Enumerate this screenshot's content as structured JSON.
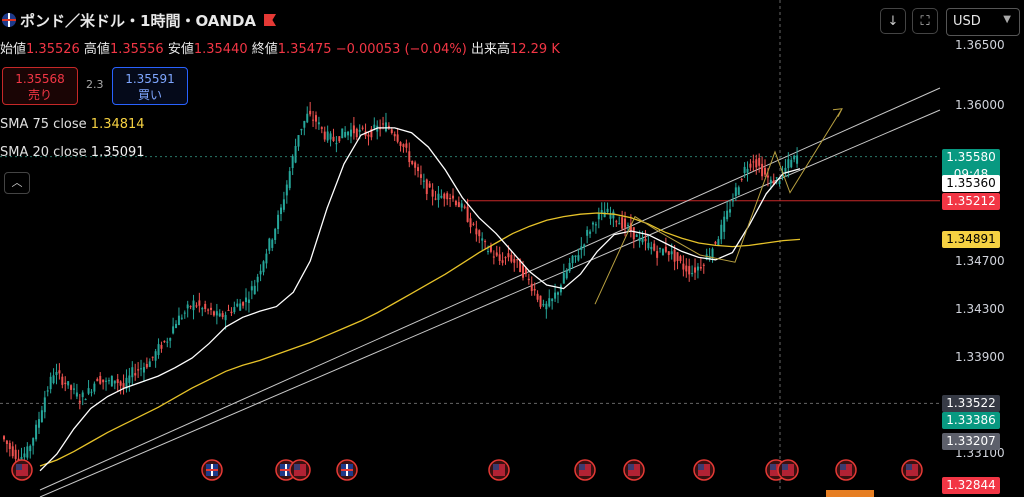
{
  "header": {
    "symbol": "ポンド／米ドル・1時間・OANDA"
  },
  "ohlc": {
    "open_label": "始値",
    "open": "1.35526",
    "high_label": "高値",
    "high": "1.35556",
    "low_label": "安値",
    "low": "1.35440",
    "close_label": "終値",
    "close": "1.35475",
    "change": "−0.00053 (−0.04%)",
    "volume_label": "出来高",
    "volume": "12.29 K"
  },
  "trade": {
    "sell_price": "1.35568",
    "sell_label": "売り",
    "spread": "2.3",
    "buy_price": "1.35591",
    "buy_label": "買い"
  },
  "indicators": {
    "sma75_label": "SMA 75 close",
    "sma75_value": "1.34814",
    "sma20_label": "SMA 20 close",
    "sma20_value": "1.35091"
  },
  "toolbar": {
    "currency": "USD"
  },
  "colors": {
    "up": "#26a69a",
    "down": "#ef5350",
    "sma75": "#e6c229",
    "sma20": "#ffffff",
    "trendline": "#c8c8c8",
    "pattern": "#b8a040",
    "hline": "#c62828"
  },
  "chart_data": {
    "type": "line",
    "ylim": [
      1.328,
      1.3682
    ],
    "y_ticks": [
      "1.36500",
      "1.36000",
      "1.35580",
      "1.35360",
      "1.35212",
      "1.34891",
      "1.34700",
      "1.34300",
      "1.33900",
      "1.33522",
      "1.33386",
      "1.33207",
      "1.33100",
      "1.32844"
    ],
    "axis_labels": [
      {
        "v": 1.365,
        "text": "1.36500"
      },
      {
        "v": 1.36,
        "text": "1.36000"
      },
      {
        "v": 1.347,
        "text": "1.34700"
      },
      {
        "v": 1.343,
        "text": "1.34300"
      },
      {
        "v": 1.339,
        "text": "1.33900"
      },
      {
        "v": 1.331,
        "text": "1.33100"
      }
    ],
    "price_tags": [
      {
        "v": 1.3558,
        "text": "1.35580",
        "sub": "09:48",
        "bg": "#089981",
        "fg": "#ffffff"
      },
      {
        "v": 1.3536,
        "text": "1.35360",
        "bg": "#ffffff",
        "fg": "#000000"
      },
      {
        "v": 1.35212,
        "text": "1.35212",
        "bg": "#f23645",
        "fg": "#ffffff"
      },
      {
        "v": 1.34891,
        "text": "1.34891",
        "bg": "#f5d142",
        "fg": "#000000"
      },
      {
        "v": 1.33522,
        "text": "1.33522",
        "bg": "#363a45",
        "fg": "#ffffff"
      },
      {
        "v": 1.33386,
        "text": "1.33386",
        "bg": "#089981",
        "fg": "#ffffff"
      },
      {
        "v": 1.33207,
        "text": "1.33207",
        "bg": "#5d606b",
        "fg": "#ffffff"
      },
      {
        "v": 1.32844,
        "text": "1.32844",
        "bg": "#f23645",
        "fg": "#ffffff"
      }
    ],
    "close_series": [
      1.3325,
      1.3315,
      1.3306,
      1.3312,
      1.3331,
      1.3358,
      1.3378,
      1.3372,
      1.3364,
      1.3356,
      1.3362,
      1.3374,
      1.3369,
      1.3373,
      1.3365,
      1.3378,
      1.3382,
      1.3387,
      1.3398,
      1.3406,
      1.3421,
      1.3428,
      1.3436,
      1.3431,
      1.3428,
      1.3424,
      1.3429,
      1.3434,
      1.3439,
      1.3452,
      1.3473,
      1.3492,
      1.3514,
      1.3546,
      1.3578,
      1.3592,
      1.3588,
      1.3576,
      1.3572,
      1.3577,
      1.358,
      1.3578,
      1.3577,
      1.3582,
      1.3584,
      1.3578,
      1.3566,
      1.3552,
      1.3538,
      1.3528,
      1.3524,
      1.3527,
      1.3521,
      1.3512,
      1.3498,
      1.3486,
      1.3478,
      1.3471,
      1.3475,
      1.3468,
      1.3458,
      1.3446,
      1.3431,
      1.3438,
      1.3452,
      1.3468,
      1.3478,
      1.3494,
      1.3506,
      1.3512,
      1.3508,
      1.3502,
      1.3496,
      1.3488,
      1.3484,
      1.3478,
      1.3481,
      1.3474,
      1.3466,
      1.3462,
      1.3468,
      1.3478,
      1.3492,
      1.351,
      1.353,
      1.3548,
      1.3556,
      1.3546,
      1.3536,
      1.354,
      1.3552,
      1.3558
    ],
    "sma75_series": [
      1.33,
      1.3305,
      1.3312,
      1.332,
      1.3328,
      1.3335,
      1.3342,
      1.3349,
      1.3357,
      1.3365,
      1.3372,
      1.3379,
      1.3384,
      1.3388,
      1.3393,
      1.3398,
      1.3403,
      1.3409,
      1.3415,
      1.3421,
      1.3428,
      1.3436,
      1.3444,
      1.3452,
      1.346,
      1.3469,
      1.3478,
      1.3486,
      1.3494,
      1.35,
      1.3505,
      1.3508,
      1.351,
      1.3511,
      1.351,
      1.3507,
      1.3502,
      1.3495,
      1.349,
      1.3486,
      1.3484,
      1.3483,
      1.3484,
      1.3486,
      1.3488,
      1.3489
    ],
    "sma20_series": [
      1.3296,
      1.331,
      1.3331,
      1.3348,
      1.3358,
      1.3365,
      1.337,
      1.3375,
      1.3382,
      1.339,
      1.3402,
      1.3416,
      1.3424,
      1.3429,
      1.3433,
      1.3445,
      1.3471,
      1.3515,
      1.3552,
      1.3576,
      1.3582,
      1.3582,
      1.3578,
      1.3566,
      1.3547,
      1.3524,
      1.3507,
      1.3494,
      1.3478,
      1.3462,
      1.3451,
      1.3448,
      1.346,
      1.3479,
      1.3493,
      1.3496,
      1.3493,
      1.3486,
      1.3479,
      1.3474,
      1.3472,
      1.3478,
      1.3501,
      1.3527,
      1.3544,
      1.3548
    ]
  }
}
